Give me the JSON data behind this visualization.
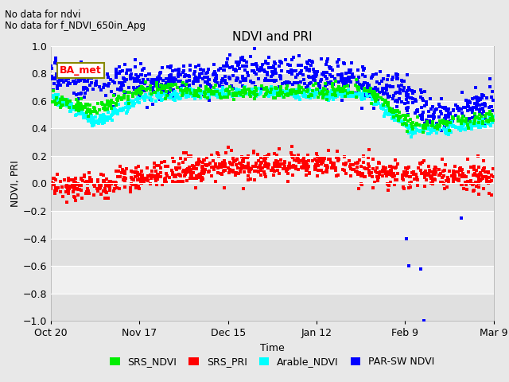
{
  "title": "NDVI and PRI",
  "xlabel": "Time",
  "ylabel": "NDVI, PRI",
  "ylim": [
    -1.0,
    1.0
  ],
  "text_lines": [
    "No data for ndvi",
    "No data for f_NDVI_650in_Apg"
  ],
  "box_label": "BA_met",
  "yticks": [
    -1.0,
    -0.8,
    -0.6,
    -0.4,
    -0.2,
    0.0,
    0.2,
    0.4,
    0.6,
    0.8,
    1.0
  ],
  "xtick_labels": [
    "Oct 20",
    "Nov 17",
    "Dec 15",
    "Jan 12",
    "Feb 9",
    "Mar 9"
  ],
  "xtick_positions": [
    0,
    28,
    56,
    84,
    112,
    140
  ],
  "colors": {
    "SRS_NDVI": "#00ee00",
    "SRS_PRI": "#ff0000",
    "Arable_NDVI": "#00ffff",
    "PAR_SW_NDVI": "#0000ff"
  },
  "background_color": "#e8e8e8",
  "plot_bg_color": "#f0f0f0",
  "band_color": "#e0e0e0",
  "seed": 42,
  "n_points": 800
}
